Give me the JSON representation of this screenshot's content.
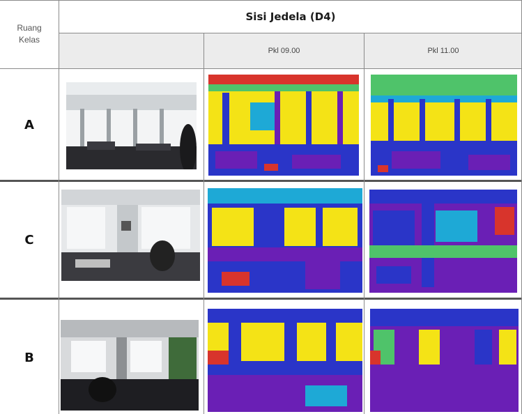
{
  "header": {
    "title": "Sisi Jedela (D4)",
    "left_label_line1": "Ruang",
    "left_label_line2": "Kelas",
    "times": [
      "Pkl 09.00",
      "Pkl 11.00"
    ]
  },
  "rows": [
    {
      "label": "A"
    },
    {
      "label": "C"
    },
    {
      "label": "B"
    }
  ],
  "colors": {
    "yellow": "#f4e316",
    "blue": "#2a35c8",
    "purple": "#6a1fb5",
    "green": "#4fc36a",
    "red": "#d8342c",
    "cyan": "#1ea9d6"
  }
}
